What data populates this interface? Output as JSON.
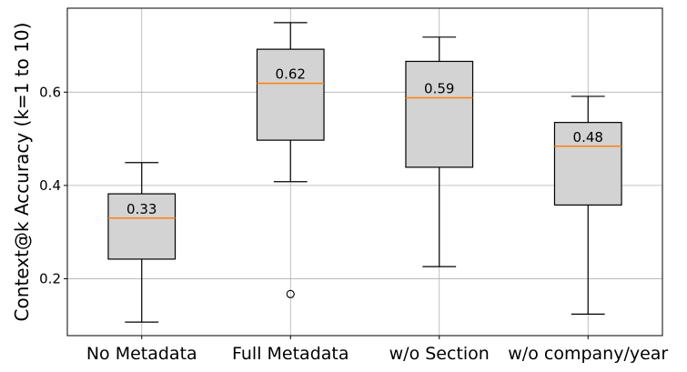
{
  "chart_data": {
    "type": "boxplot",
    "title": "",
    "xlabel": "",
    "ylabel": "Context@k Accuracy (k=1 to 10)",
    "ylim": [
      0.078,
      0.78
    ],
    "yticks": [
      0.2,
      0.4,
      0.6
    ],
    "ytick_labels": [
      "0.2",
      "0.4",
      "0.6"
    ],
    "grid": true,
    "box_color": "#d3d3d3",
    "median_color": "#ff7f0e",
    "categories": [
      "No Metadata",
      "Full Metadata",
      "w/o Section",
      "w/o company/year"
    ],
    "boxes": [
      {
        "name": "No Metadata",
        "whisker_low": 0.107,
        "q1": 0.242,
        "median": 0.33,
        "q3": 0.382,
        "whisker_high": 0.449,
        "outliers": [],
        "median_label": "0.33"
      },
      {
        "name": "Full Metadata",
        "whisker_low": 0.408,
        "q1": 0.497,
        "median": 0.619,
        "q3": 0.692,
        "whisker_high": 0.749,
        "outliers": [
          0.167
        ],
        "median_label": "0.62"
      },
      {
        "name": "w/o Section",
        "whisker_low": 0.226,
        "q1": 0.439,
        "median": 0.588,
        "q3": 0.666,
        "whisker_high": 0.718,
        "outliers": [],
        "median_label": "0.59"
      },
      {
        "name": "w/o company/year",
        "whisker_low": 0.124,
        "q1": 0.358,
        "median": 0.484,
        "q3": 0.535,
        "whisker_high": 0.591,
        "outliers": [],
        "median_label": "0.48"
      }
    ]
  }
}
